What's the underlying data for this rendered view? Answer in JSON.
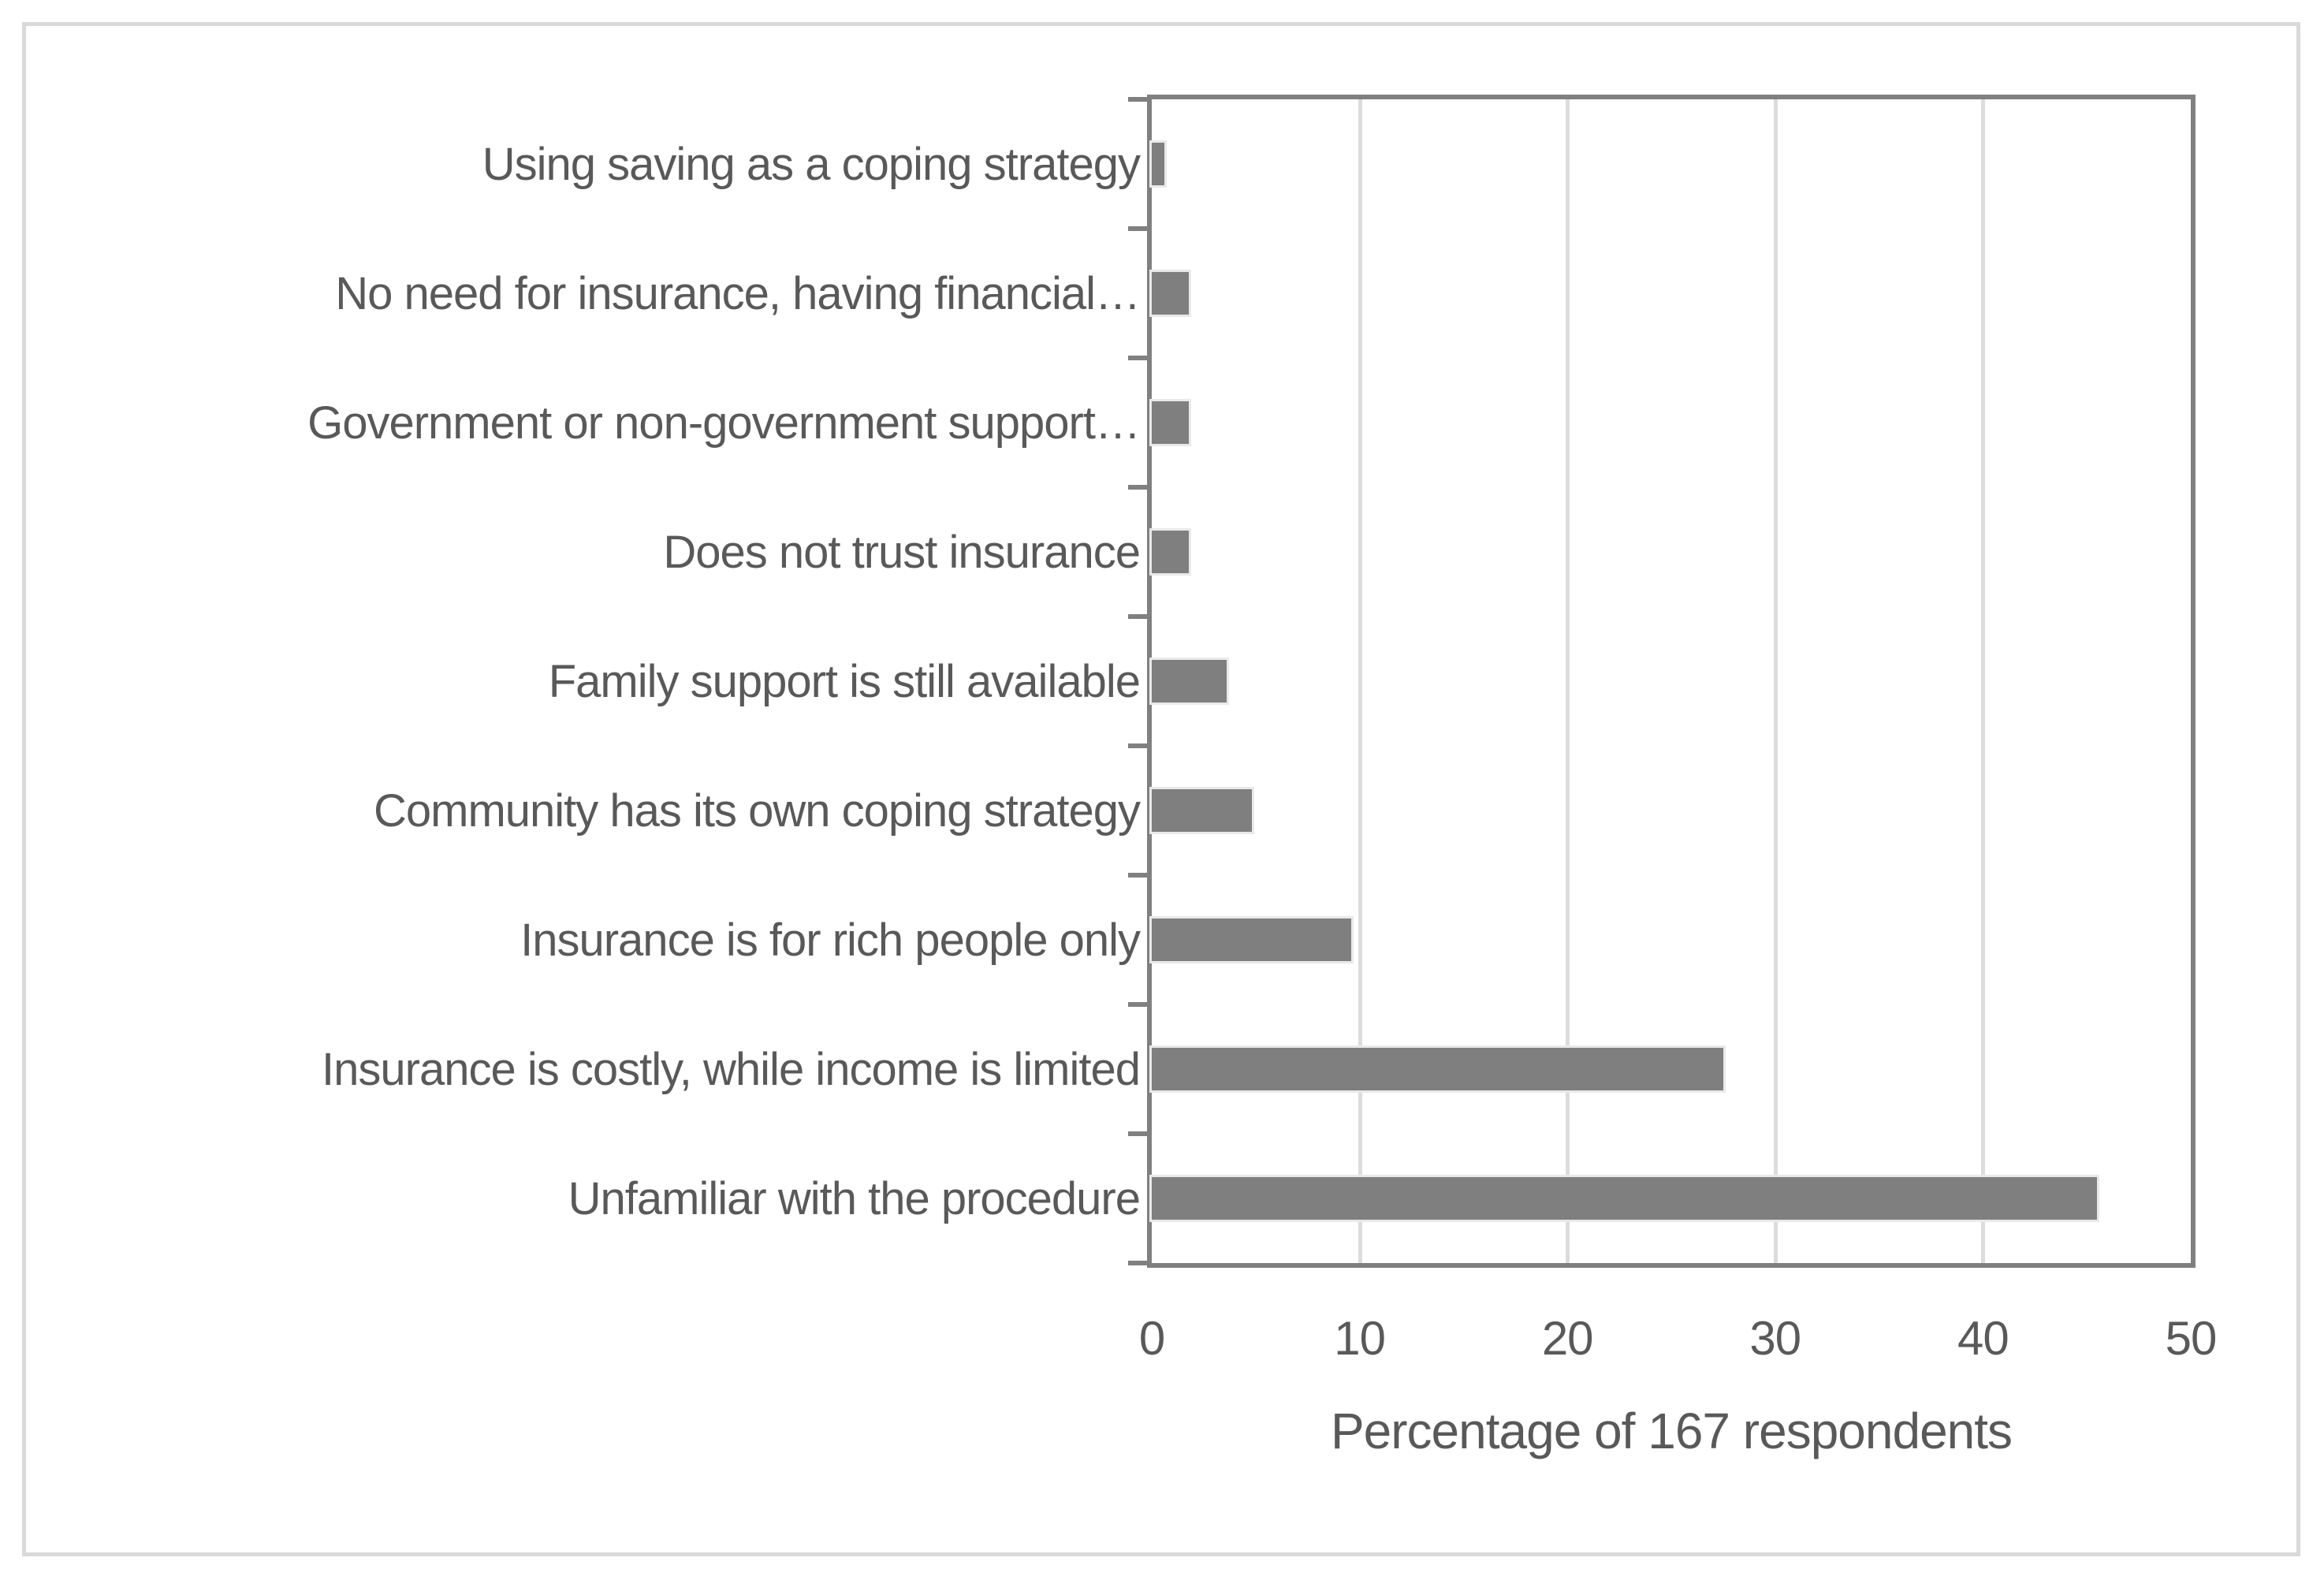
{
  "figure": {
    "background_color": "#ffffff",
    "outer_border_color": "#d9d9d9"
  },
  "chart_data": {
    "type": "bar",
    "orientation": "horizontal",
    "title": "",
    "xlabel": "Percentage of 167 respondents",
    "ylabel": "",
    "categories": [
      "Using saving as a coping strategy",
      "No need for insurance, having financial…",
      "Government or non-government support…",
      "Does not trust insurance",
      "Family support is still available",
      "Community has its own coping strategy",
      "Insurance is for rich people only",
      "Insurance is costly, while income is limited",
      "Unfamiliar with the procedure"
    ],
    "values": [
      0.6,
      1.8,
      1.8,
      1.8,
      3.6,
      4.8,
      9.6,
      27.5,
      45.5
    ],
    "xlim": [
      0,
      50
    ],
    "xticks": [
      0,
      10,
      20,
      30,
      40,
      50
    ],
    "grid": "vertical-gridlines-on",
    "legend": "none",
    "bar_color": "#7f7f7f",
    "bar_outline_color": "#e9e9e9",
    "axis_color": "#808080",
    "gridline_color": "#dcdcdc",
    "text_color": "#595959"
  }
}
